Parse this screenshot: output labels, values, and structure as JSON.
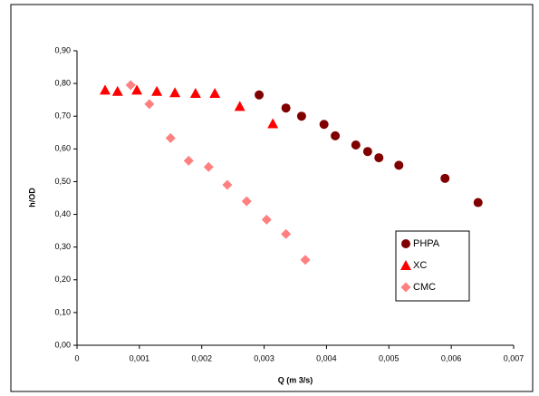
{
  "chart_data": {
    "type": "scatter",
    "x_label": "Q (m 3/s)",
    "y_label": "h/OD",
    "xlim": [
      0,
      0.007
    ],
    "xticks": [
      0,
      {
        "value": 0.001,
        "label": "0,001"
      },
      {
        "value": 0.002,
        "label": "0,002"
      },
      {
        "value": 0.003,
        "label": "0,003"
      },
      {
        "value": 0.004,
        "label": "0,004"
      },
      {
        "value": 0.005,
        "label": "0,005"
      },
      {
        "value": 0.006,
        "label": "0,006"
      },
      {
        "value": 0.007,
        "label": "0,007"
      }
    ],
    "ylim": [
      0,
      0.9
    ],
    "yticks": [
      {
        "value": 0,
        "label": "0,00"
      },
      {
        "value": 0.1,
        "label": "0,10"
      },
      {
        "value": 0.2,
        "label": "0,20"
      },
      {
        "value": 0.3,
        "label": "0,30"
      },
      {
        "value": 0.4,
        "label": "0,40"
      },
      {
        "value": 0.5,
        "label": "0,50"
      },
      {
        "value": 0.6,
        "label": "0,60"
      },
      {
        "value": 0.7,
        "label": "0,70"
      },
      {
        "value": 0.8,
        "label": "0,80"
      },
      {
        "value": 0.9,
        "label": "0,90"
      }
    ],
    "grid": false,
    "legend": "right",
    "series": [
      {
        "name": "PHPA",
        "color": "#800000",
        "marker": "circle",
        "x": [
          0.00292,
          0.00335,
          0.0036,
          0.00396,
          0.00414,
          0.00447,
          0.00466,
          0.00484,
          0.00516,
          0.0059,
          0.00643
        ],
        "values": [
          0.765,
          0.725,
          0.7,
          0.675,
          0.64,
          0.612,
          0.592,
          0.573,
          0.55,
          0.51,
          0.436
        ]
      },
      {
        "name": "XC",
        "color": "#ff0000",
        "marker": "triangle",
        "x": [
          0.00045,
          0.00065,
          0.00096,
          0.00128,
          0.00157,
          0.0019,
          0.00221,
          0.00261,
          0.00314
        ],
        "values": [
          0.78,
          0.776,
          0.78,
          0.776,
          0.772,
          0.77,
          0.77,
          0.73,
          0.677
        ]
      },
      {
        "name": "CMC",
        "color": "#ff8080",
        "marker": "diamond",
        "x": [
          0.00086,
          0.00116,
          0.0015,
          0.00179,
          0.00211,
          0.00241,
          0.00272,
          0.00304,
          0.00335,
          0.00366
        ],
        "values": [
          0.795,
          0.737,
          0.633,
          0.564,
          0.545,
          0.49,
          0.44,
          0.384,
          0.34,
          0.261
        ]
      }
    ]
  }
}
